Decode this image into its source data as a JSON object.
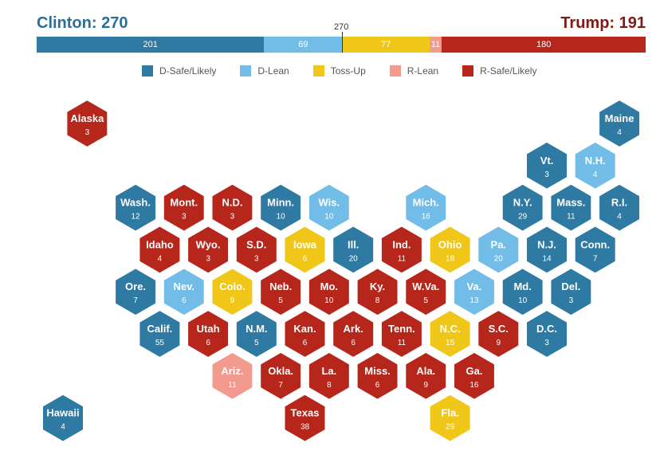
{
  "header": {
    "clinton_label": "Clinton: 270",
    "trump_label": "Trump: 191",
    "threshold_label": "270"
  },
  "bar": {
    "segments": [
      {
        "key": "d-safe",
        "value": 201,
        "label": "201"
      },
      {
        "key": "d-lean",
        "value": 69,
        "label": "69"
      },
      {
        "key": "tossup",
        "value": 77,
        "label": "77"
      },
      {
        "key": "r-lean",
        "value": 11,
        "label": "11"
      },
      {
        "key": "r-safe",
        "value": 180,
        "label": "180"
      }
    ],
    "total": 538
  },
  "colors": {
    "d-safe": "#2e7aa3",
    "d-lean": "#72bde8",
    "tossup": "#f0c718",
    "r-lean": "#f29a8e",
    "r-safe": "#b6261a"
  },
  "legend": [
    {
      "key": "d-safe",
      "label": "D-Safe/Likely"
    },
    {
      "key": "d-lean",
      "label": "D-Lean"
    },
    {
      "key": "tossup",
      "label": "Toss-Up"
    },
    {
      "key": "r-lean",
      "label": "R-Lean"
    },
    {
      "key": "r-safe",
      "label": "R-Safe/Likely"
    }
  ],
  "states": [
    {
      "name": "Alaska",
      "ev": "3",
      "cat": "r-safe",
      "row": 0,
      "col": 0.5
    },
    {
      "name": "Maine",
      "ev": "4",
      "cat": "d-safe",
      "row": 0,
      "col": 11.5
    },
    {
      "name": "Vt.",
      "ev": "3",
      "cat": "d-safe",
      "row": 1,
      "col": 10
    },
    {
      "name": "N.H.",
      "ev": "4",
      "cat": "d-lean",
      "row": 1,
      "col": 11
    },
    {
      "name": "Wash.",
      "ev": "12",
      "cat": "d-safe",
      "row": 2,
      "col": 1.5
    },
    {
      "name": "Mont.",
      "ev": "3",
      "cat": "r-safe",
      "row": 2,
      "col": 2.5
    },
    {
      "name": "N.D.",
      "ev": "3",
      "cat": "r-safe",
      "row": 2,
      "col": 3.5
    },
    {
      "name": "Minn.",
      "ev": "10",
      "cat": "d-safe",
      "row": 2,
      "col": 4.5
    },
    {
      "name": "Wis.",
      "ev": "10",
      "cat": "d-lean",
      "row": 2,
      "col": 5.5
    },
    {
      "name": "Mich.",
      "ev": "16",
      "cat": "d-lean",
      "row": 2,
      "col": 7.5
    },
    {
      "name": "N.Y.",
      "ev": "29",
      "cat": "d-safe",
      "row": 2,
      "col": 9.5
    },
    {
      "name": "Mass.",
      "ev": "11",
      "cat": "d-safe",
      "row": 2,
      "col": 10.5
    },
    {
      "name": "R.I.",
      "ev": "4",
      "cat": "d-safe",
      "row": 2,
      "col": 11.5
    },
    {
      "name": "Idaho",
      "ev": "4",
      "cat": "r-safe",
      "row": 3,
      "col": 2
    },
    {
      "name": "Wyo.",
      "ev": "3",
      "cat": "r-safe",
      "row": 3,
      "col": 3
    },
    {
      "name": "S.D.",
      "ev": "3",
      "cat": "r-safe",
      "row": 3,
      "col": 4
    },
    {
      "name": "Iowa",
      "ev": "6",
      "cat": "tossup",
      "row": 3,
      "col": 5
    },
    {
      "name": "Ill.",
      "ev": "20",
      "cat": "d-safe",
      "row": 3,
      "col": 6
    },
    {
      "name": "Ind.",
      "ev": "11",
      "cat": "r-safe",
      "row": 3,
      "col": 7
    },
    {
      "name": "Ohio",
      "ev": "18",
      "cat": "tossup",
      "row": 3,
      "col": 8
    },
    {
      "name": "Pa.",
      "ev": "20",
      "cat": "d-lean",
      "row": 3,
      "col": 9
    },
    {
      "name": "N.J.",
      "ev": "14",
      "cat": "d-safe",
      "row": 3,
      "col": 10
    },
    {
      "name": "Conn.",
      "ev": "7",
      "cat": "d-safe",
      "row": 3,
      "col": 11
    },
    {
      "name": "Ore.",
      "ev": "7",
      "cat": "d-safe",
      "row": 4,
      "col": 1.5
    },
    {
      "name": "Nev.",
      "ev": "6",
      "cat": "d-lean",
      "row": 4,
      "col": 2.5
    },
    {
      "name": "Colo.",
      "ev": "9",
      "cat": "tossup",
      "row": 4,
      "col": 3.5
    },
    {
      "name": "Neb.",
      "ev": "5",
      "cat": "r-safe",
      "row": 4,
      "col": 4.5
    },
    {
      "name": "Mo.",
      "ev": "10",
      "cat": "r-safe",
      "row": 4,
      "col": 5.5
    },
    {
      "name": "Ky.",
      "ev": "8",
      "cat": "r-safe",
      "row": 4,
      "col": 6.5
    },
    {
      "name": "W.Va.",
      "ev": "5",
      "cat": "r-safe",
      "row": 4,
      "col": 7.5
    },
    {
      "name": "Va.",
      "ev": "13",
      "cat": "d-lean",
      "row": 4,
      "col": 8.5
    },
    {
      "name": "Md.",
      "ev": "10",
      "cat": "d-safe",
      "row": 4,
      "col": 9.5
    },
    {
      "name": "Del.",
      "ev": "3",
      "cat": "d-safe",
      "row": 4,
      "col": 10.5
    },
    {
      "name": "Calif.",
      "ev": "55",
      "cat": "d-safe",
      "row": 5,
      "col": 2
    },
    {
      "name": "Utah",
      "ev": "6",
      "cat": "r-safe",
      "row": 5,
      "col": 3
    },
    {
      "name": "N.M.",
      "ev": "5",
      "cat": "d-safe",
      "row": 5,
      "col": 4
    },
    {
      "name": "Kan.",
      "ev": "6",
      "cat": "r-safe",
      "row": 5,
      "col": 5
    },
    {
      "name": "Ark.",
      "ev": "6",
      "cat": "r-safe",
      "row": 5,
      "col": 6
    },
    {
      "name": "Tenn.",
      "ev": "11",
      "cat": "r-safe",
      "row": 5,
      "col": 7
    },
    {
      "name": "N.C.",
      "ev": "15",
      "cat": "tossup",
      "row": 5,
      "col": 8
    },
    {
      "name": "S.C.",
      "ev": "9",
      "cat": "r-safe",
      "row": 5,
      "col": 9
    },
    {
      "name": "D.C.",
      "ev": "3",
      "cat": "d-safe",
      "row": 5,
      "col": 10
    },
    {
      "name": "Ariz.",
      "ev": "11",
      "cat": "r-lean",
      "row": 6,
      "col": 3.5
    },
    {
      "name": "Okla.",
      "ev": "7",
      "cat": "r-safe",
      "row": 6,
      "col": 4.5
    },
    {
      "name": "La.",
      "ev": "8",
      "cat": "r-safe",
      "row": 6,
      "col": 5.5
    },
    {
      "name": "Miss.",
      "ev": "6",
      "cat": "r-safe",
      "row": 6,
      "col": 6.5
    },
    {
      "name": "Ala.",
      "ev": "9",
      "cat": "r-safe",
      "row": 6,
      "col": 7.5
    },
    {
      "name": "Ga.",
      "ev": "16",
      "cat": "r-safe",
      "row": 6,
      "col": 8.5
    },
    {
      "name": "Texas",
      "ev": "38",
      "cat": "r-safe",
      "row": 7,
      "col": 5
    },
    {
      "name": "Fla.",
      "ev": "29",
      "cat": "tossup",
      "row": 7,
      "col": 8
    },
    {
      "name": "Hawaii",
      "ev": "4",
      "cat": "d-safe",
      "row": 7,
      "col": 0
    }
  ]
}
